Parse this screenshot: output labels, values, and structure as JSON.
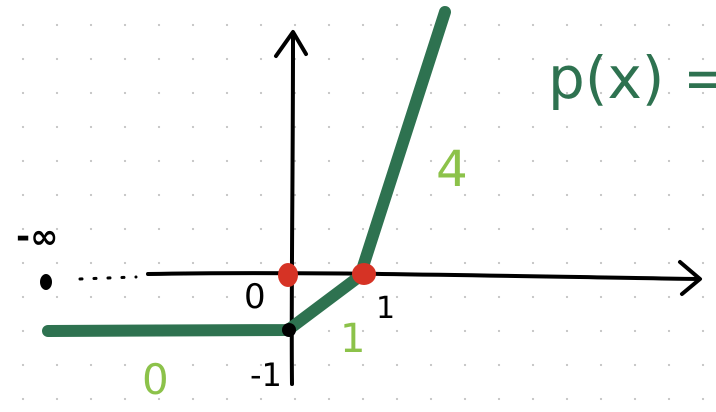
{
  "colors": {
    "curve": "#2e7250",
    "axis": "#000000",
    "point": "#d63325",
    "slope_label": "#8cc24a",
    "title": "#2e7250"
  },
  "title": "p(x) =",
  "labels": {
    "neg_infinity": "-∞",
    "origin": "0",
    "x_tick_one": "1",
    "y_tick_neg_one": "-1"
  },
  "slope_labels": {
    "left_segment": "0",
    "middle_segment": "1",
    "right_segment": "4"
  },
  "function": {
    "breakpoints": [
      {
        "x": 0,
        "y": -1
      },
      {
        "x": 1,
        "y": 0
      }
    ],
    "slopes": [
      0,
      1,
      4
    ],
    "roots_marked": [
      0,
      1
    ]
  }
}
